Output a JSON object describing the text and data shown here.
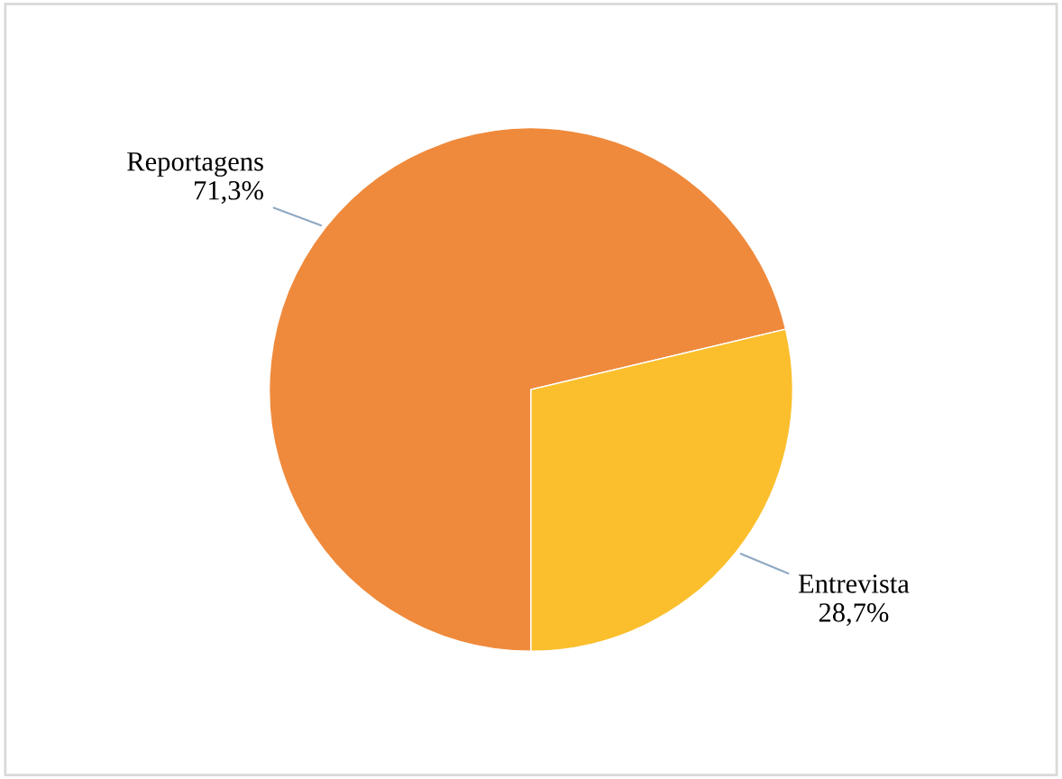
{
  "chart_data": {
    "type": "pie",
    "categories": [
      "Reportagens",
      "Entrevista"
    ],
    "values": [
      71.3,
      28.7
    ],
    "colors": [
      "#ef8a3c",
      "#fbbf2d"
    ],
    "value_labels": [
      "71,3%",
      "28,7%"
    ],
    "legend": false
  }
}
